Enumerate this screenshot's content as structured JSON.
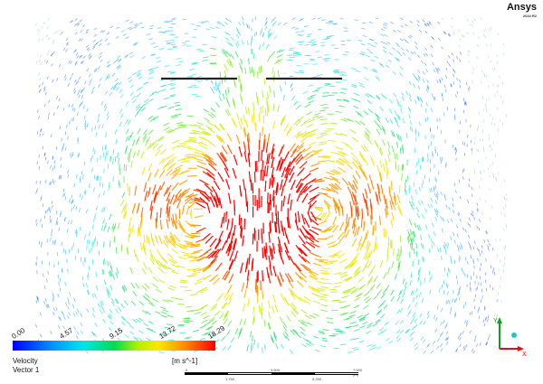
{
  "brand": {
    "name": "Ansys",
    "version": "2024 R2"
  },
  "legend": {
    "ticks": [
      "0.00",
      "4.57",
      "9.15",
      "13.72",
      "18.29"
    ],
    "quantity": "Velocity",
    "units": "[m s^-1]",
    "variable": "Vector 1",
    "min": 0.0,
    "max": 18.29,
    "colors": [
      "#0000ff",
      "#0096ff",
      "#00e6e6",
      "#00dc50",
      "#b4f000",
      "#ffe600",
      "#ff8a00",
      "#ff0000"
    ]
  },
  "scale_bar": {
    "top_labels": [
      "0",
      "3.500",
      "7.000 (m)"
    ],
    "bottom_labels": [
      "1.750",
      "5.250"
    ]
  },
  "triad": {
    "x_label": "X",
    "y_label": "Y",
    "z_label": "Z"
  },
  "colors": {
    "x_axis": "#e01010",
    "y_axis": "#10a020",
    "z_axis": "#1fc8c8"
  }
}
